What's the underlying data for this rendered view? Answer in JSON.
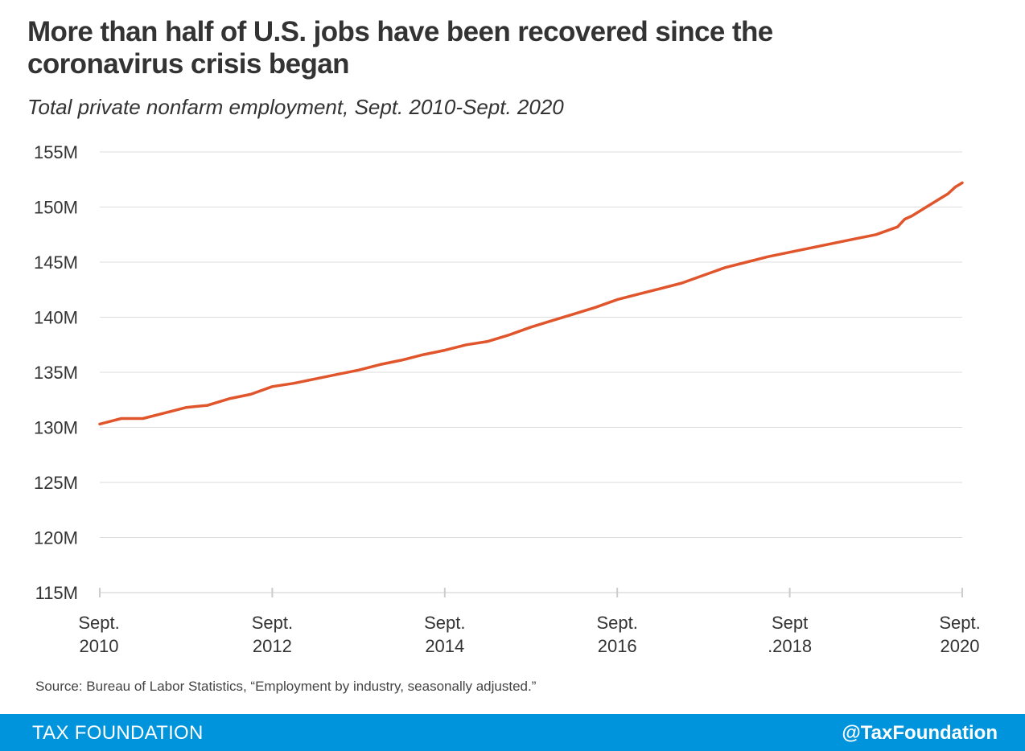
{
  "title_line1": "More than half of U.S. jobs have been recovered since the",
  "title_line2": "coronavirus crisis began",
  "subtitle": "Total private nonfarm employment, Sept. 2010-Sept. 2020",
  "source": "Source: Bureau of Labor Statistics, “Employment by industry, seasonally adjusted.”",
  "footer": {
    "brand": "TAX FOUNDATION",
    "handle": "@TaxFoundation"
  },
  "colors": {
    "line": "#e0552b",
    "footer": "#0094dd",
    "grid": "#dddddd",
    "text": "#333333"
  },
  "chart_data": {
    "type": "line",
    "title": "More than half of U.S. jobs have been recovered since the coronavirus crisis began",
    "subtitle": "Total private nonfarm employment, Sept. 2010-Sept. 2020",
    "xlabel": "",
    "ylabel": "",
    "ylim": [
      115,
      155
    ],
    "y_unit": "M",
    "yticks": [
      115,
      120,
      125,
      130,
      135,
      140,
      145,
      150,
      155
    ],
    "ytick_labels": [
      "115M",
      "120M",
      "125M",
      "130M",
      "135M",
      "140M",
      "145M",
      "150M",
      "155M"
    ],
    "xlim": [
      "2010-09",
      "2020-09"
    ],
    "xticks": [
      {
        "date": "2010-09",
        "line1": "Sept.",
        "line2": "2010"
      },
      {
        "date": "2012-09",
        "line1": "Sept.",
        "line2": "2012"
      },
      {
        "date": "2014-09",
        "line1": "Sept.",
        "line2": "2014"
      },
      {
        "date": "2016-09",
        "line1": "Sept.",
        "line2": "2016"
      },
      {
        "date": "2018-09",
        "line1": "Sept",
        "line2": ".2018"
      },
      {
        "date": "2020-09",
        "line1": "Sept.",
        "line2": "2020"
      }
    ],
    "grid": true,
    "legend": "none",
    "series": [
      {
        "points": [
          [
            "2010-09",
            130.3
          ],
          [
            "2010-12",
            130.8
          ],
          [
            "2011-03",
            130.8
          ],
          [
            "2011-06",
            131.3
          ],
          [
            "2011-09",
            131.8
          ],
          [
            "2011-12",
            132.0
          ],
          [
            "2012-03",
            132.6
          ],
          [
            "2012-06",
            133.0
          ],
          [
            "2012-09",
            133.7
          ],
          [
            "2012-12",
            134.0
          ],
          [
            "2013-03",
            134.4
          ],
          [
            "2013-06",
            134.8
          ],
          [
            "2013-09",
            135.2
          ],
          [
            "2013-12",
            135.7
          ],
          [
            "2014-03",
            136.1
          ],
          [
            "2014-06",
            136.6
          ],
          [
            "2014-09",
            137.0
          ],
          [
            "2014-12",
            137.5
          ],
          [
            "2015-03",
            137.8
          ],
          [
            "2015-06",
            138.4
          ],
          [
            "2015-09",
            139.1
          ],
          [
            "2015-12",
            139.7
          ],
          [
            "2016-03",
            140.3
          ],
          [
            "2016-06",
            140.9
          ],
          [
            "2016-09",
            141.6
          ],
          [
            "2016-12",
            142.1
          ],
          [
            "2017-03",
            142.6
          ],
          [
            "2017-06",
            143.1
          ],
          [
            "2017-09",
            143.8
          ],
          [
            "2017-12",
            144.5
          ],
          [
            "2018-03",
            145.0
          ],
          [
            "2018-06",
            145.5
          ],
          [
            "2018-09",
            145.9
          ],
          [
            "2018-12",
            146.3
          ],
          [
            "2019-03",
            146.7
          ],
          [
            "2019-06",
            147.1
          ],
          [
            "2019-09",
            147.5
          ],
          [
            "2019-12",
            148.2
          ],
          [
            "2020-01",
            148.9
          ],
          [
            "2020-02",
            149.2
          ],
          [
            "2020-03",
            149.6
          ],
          [
            "2020-04",
            150.0
          ],
          [
            "2020-05",
            150.4
          ],
          [
            "2020-06",
            150.8
          ],
          [
            "2020-07",
            151.2
          ],
          [
            "2020-08",
            151.8
          ],
          [
            "2020-09",
            152.2
          ]
        ]
      }
    ]
  }
}
